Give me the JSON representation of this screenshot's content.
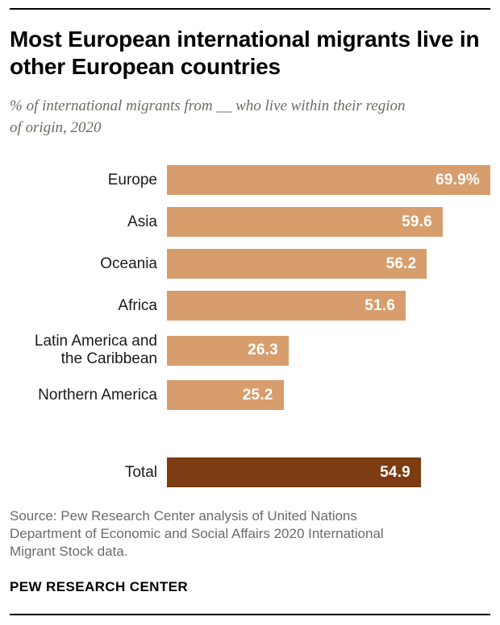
{
  "chart_data": {
    "type": "bar",
    "orientation": "horizontal",
    "title": "Most European international migrants live in other European countries",
    "subtitle": "% of international migrants from __ who live within their region of origin, 2020",
    "xlim": [
      0,
      69.9
    ],
    "bar_color": "#d89d6c",
    "total_color": "#7d3b12",
    "value_label_color": "#ffffff",
    "categories": [
      "Europe",
      "Asia",
      "Oceania",
      "Africa",
      "Latin America and the Caribbean",
      "Northern America",
      "Total"
    ],
    "values": [
      69.9,
      59.6,
      56.2,
      51.6,
      26.3,
      25.2,
      54.9
    ],
    "rows": [
      {
        "label": "Europe",
        "value": 69.9,
        "display": "69.9%",
        "type": "regular"
      },
      {
        "label": "Asia",
        "value": 59.6,
        "display": "59.6",
        "type": "regular"
      },
      {
        "label": "Oceania",
        "value": 56.2,
        "display": "56.2",
        "type": "regular"
      },
      {
        "label": "Africa",
        "value": 51.6,
        "display": "51.6",
        "type": "regular"
      },
      {
        "label": "Latin America and the Caribbean",
        "value": 26.3,
        "display": "26.3",
        "type": "regular"
      },
      {
        "label": "Northern America",
        "value": 25.2,
        "display": "25.2",
        "type": "regular"
      },
      {
        "label": "Total",
        "value": 54.9,
        "display": "54.9",
        "type": "total"
      }
    ]
  },
  "footer": {
    "source": "Source: Pew Research Center analysis of United Nations Department of Economic and Social Affairs 2020 International Migrant Stock data.",
    "brand": "PEW RESEARCH CENTER"
  }
}
